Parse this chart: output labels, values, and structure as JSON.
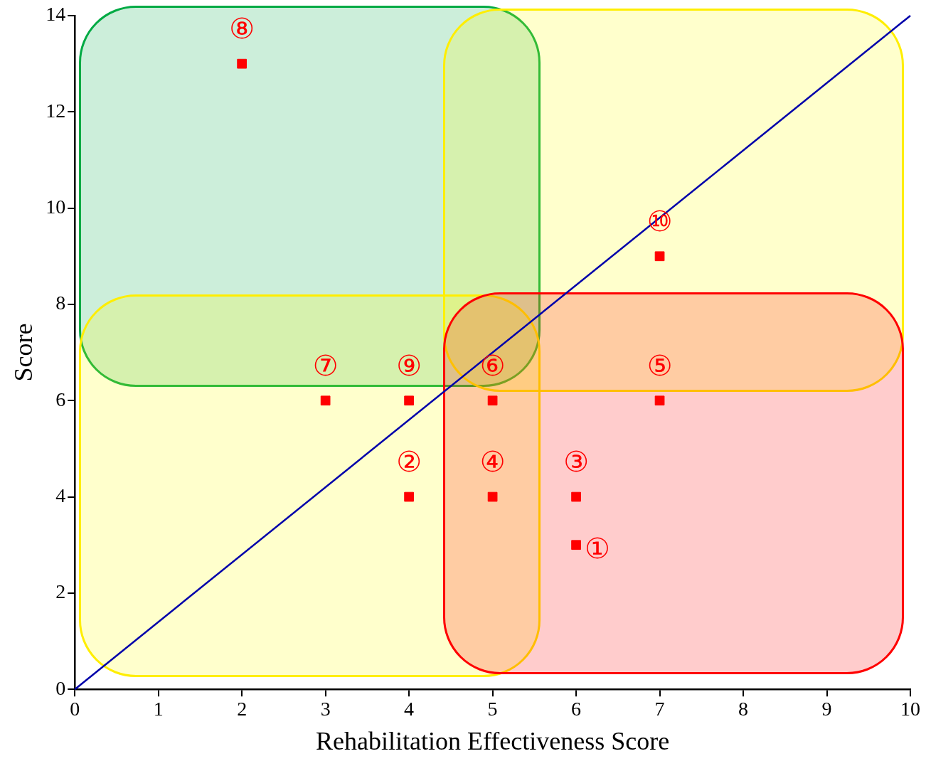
{
  "chart_data": {
    "type": "scatter",
    "xlabel": "Rehabilitation Effectiveness Score",
    "ylabel": "Score",
    "xlim": [
      0,
      10
    ],
    "ylim": [
      0,
      14
    ],
    "xticks": [
      0,
      1,
      2,
      3,
      4,
      5,
      6,
      7,
      8,
      9,
      10
    ],
    "yticks": [
      0,
      2,
      4,
      6,
      8,
      10,
      12,
      14
    ],
    "grid": false,
    "legend": false,
    "series": [
      {
        "type": "scatter",
        "marker": "square",
        "color": "#ff0000",
        "x": [
          6,
          4,
          6,
          5,
          7,
          5,
          3,
          2,
          4,
          7
        ],
        "values": [
          3,
          4,
          4,
          4,
          6,
          6,
          6,
          13,
          6,
          9
        ],
        "value_labels": [
          "①",
          "②",
          "③",
          "④",
          "⑤",
          "⑥",
          "⑦",
          "⑧",
          "⑨",
          "⑩"
        ]
      },
      {
        "type": "line",
        "marker": "none",
        "color": "#0000aa",
        "x": [
          0,
          10
        ],
        "values": [
          0,
          14
        ]
      }
    ]
  }
}
